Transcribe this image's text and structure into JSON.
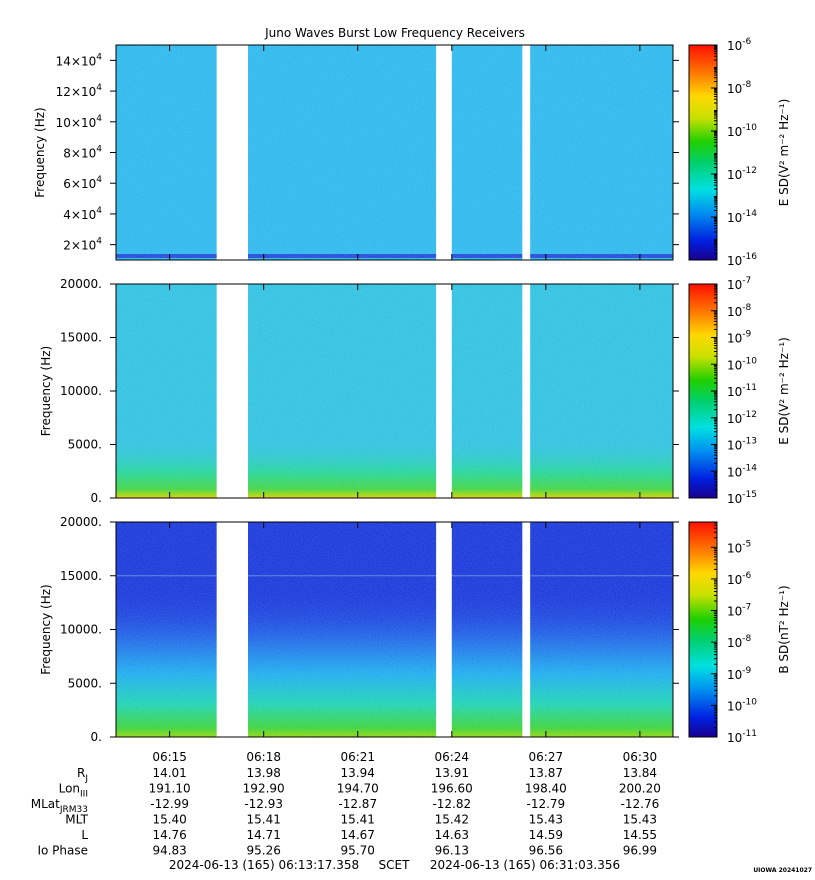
{
  "title": "Juno Waves Burst Low Frequency Receivers",
  "chart_data": {
    "type": "heatmap",
    "x_tick_labels": [
      "06:15",
      "06:18",
      "06:21",
      "06:24",
      "06:27",
      "06:30"
    ],
    "x_range": [
      "06:13:17.358",
      "06:31:03.356"
    ],
    "data_gaps": [
      [
        "06:16:30",
        "06:17:30"
      ],
      [
        "06:23:30",
        "06:24:00"
      ],
      [
        "06:26:15",
        "06:26:30"
      ]
    ],
    "panels": [
      {
        "ylabel": "Frequency (Hz)",
        "ylim": [
          10000,
          150000
        ],
        "y_ticks": [
          {
            "v": 20000,
            "m": "2×10",
            "e": "4"
          },
          {
            "v": 40000,
            "m": "4×10",
            "e": "4"
          },
          {
            "v": 60000,
            "m": "6×10",
            "e": "4"
          },
          {
            "v": 80000,
            "m": "8×10",
            "e": "4"
          },
          {
            "v": 100000,
            "m": "10×10",
            "e": "4"
          },
          {
            "v": 120000,
            "m": "12×10",
            "e": "4"
          },
          {
            "v": 140000,
            "m": "14×10",
            "e": "4"
          }
        ],
        "colorbar_label": "E SD(V² m⁻² Hz⁻¹)",
        "colorbar_log_range": [
          -16,
          -6
        ],
        "colorbar_ticks": [
          -16,
          -14,
          -12,
          -10,
          -8,
          -6
        ],
        "background_color": "#1fb4ec"
      },
      {
        "ylabel": "Frequency (Hz)",
        "ylim": [
          0,
          20000
        ],
        "y_ticks": [
          {
            "v": 0,
            "t": "0."
          },
          {
            "v": 5000,
            "t": "5000."
          },
          {
            "v": 10000,
            "t": "10000."
          },
          {
            "v": 15000,
            "t": "15000."
          },
          {
            "v": 20000,
            "t": "20000."
          }
        ],
        "colorbar_label": "E SD(V² m⁻² Hz⁻¹)",
        "colorbar_log_range": [
          -15,
          -7
        ],
        "colorbar_ticks": [
          -15,
          -14,
          -13,
          -12,
          -11,
          -10,
          -9,
          -8,
          -7
        ],
        "background_color": "#22bedf"
      },
      {
        "ylabel": "Frequency (Hz)",
        "ylim": [
          0,
          20000
        ],
        "y_ticks": [
          {
            "v": 0,
            "t": "0."
          },
          {
            "v": 5000,
            "t": "5000."
          },
          {
            "v": 10000,
            "t": "10000."
          },
          {
            "v": 15000,
            "t": "15000."
          },
          {
            "v": 20000,
            "t": "20000."
          }
        ],
        "colorbar_label": "B SD(nT² Hz⁻¹)",
        "colorbar_log_range": [
          -11,
          -4.2
        ],
        "colorbar_ticks": [
          -11,
          -10,
          -9,
          -8,
          -7,
          -6,
          -5
        ],
        "background_color": "#0a2bd8"
      }
    ],
    "ephemeris": {
      "rows": [
        {
          "label": "R",
          "sub": "J",
          "values": [
            "14.01",
            "13.98",
            "13.94",
            "13.91",
            "13.87",
            "13.84"
          ]
        },
        {
          "label": "Lon",
          "sub": "III",
          "values": [
            "191.10",
            "192.90",
            "194.70",
            "196.60",
            "198.40",
            "200.20"
          ]
        },
        {
          "label": "MLat",
          "sub": "JRM33",
          "values": [
            "-12.99",
            "-12.93",
            "-12.87",
            "-12.82",
            "-12.79",
            "-12.76"
          ]
        },
        {
          "label": "MLT",
          "sub": "",
          "values": [
            "15.40",
            "15.41",
            "15.41",
            "15.42",
            "15.43",
            "15.43"
          ]
        },
        {
          "label": "L",
          "sub": "",
          "values": [
            "14.76",
            "14.71",
            "14.67",
            "14.63",
            "14.59",
            "14.55"
          ]
        },
        {
          "label": "Io Phase",
          "sub": "",
          "values": [
            "94.83",
            "95.26",
            "95.70",
            "96.13",
            "96.56",
            "96.99"
          ]
        }
      ]
    },
    "footer": {
      "start": "2024-06-13 (165) 06:13:17.358",
      "middle": "SCET",
      "end": "2024-06-13 (165) 06:31:03.356"
    },
    "stamp": "UIOWA 20241027"
  }
}
